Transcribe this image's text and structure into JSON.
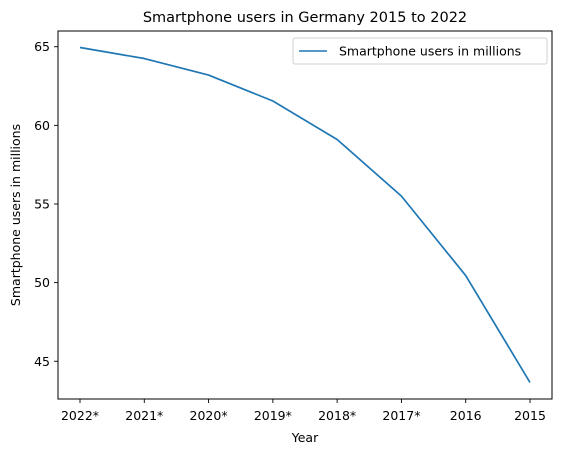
{
  "chart_data": {
    "type": "line",
    "title": "Smartphone users in Germany 2015 to 2022",
    "xlabel": "Year",
    "ylabel": "Smartphone users in millions",
    "categories": [
      "2022*",
      "2021*",
      "2020*",
      "2019*",
      "2018*",
      "2017*",
      "2016",
      "2015"
    ],
    "series": [
      {
        "name": "Smartphone users in millions",
        "values": [
          64.95,
          64.25,
          63.2,
          61.55,
          59.1,
          55.5,
          50.45,
          43.65
        ],
        "color": "#1f77b4"
      }
    ],
    "ylim": [
      42.6,
      66.0
    ],
    "yticks": [
      45,
      50,
      55,
      60,
      65
    ],
    "grid": false,
    "legend_position": "top-right"
  }
}
